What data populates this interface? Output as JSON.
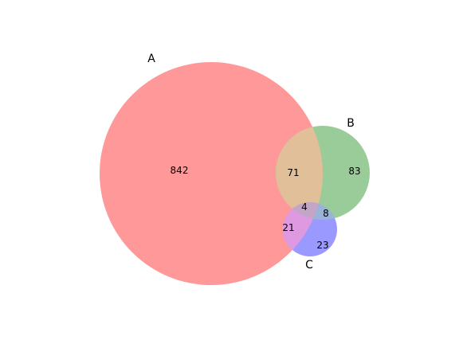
{
  "venn": {
    "sets": [
      {
        "name": "A",
        "color": "#ff0000"
      },
      {
        "name": "B",
        "color": "#008000"
      },
      {
        "name": "C",
        "color": "#0000ff"
      }
    ],
    "regions": {
      "A_only": "842",
      "B_only": "83",
      "AB": "71",
      "ABC": "4",
      "BC": "8",
      "AC": "21",
      "C_only": "23"
    }
  }
}
